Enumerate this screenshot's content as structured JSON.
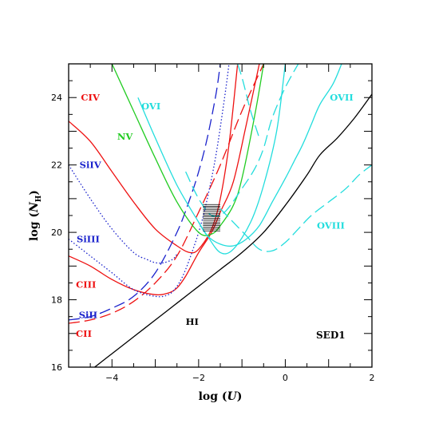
{
  "chart_data": {
    "type": "line",
    "title": "",
    "xlabel_prefix": "log (",
    "xlabel_var": "U",
    "xlabel_suffix": ")",
    "ylabel_prefix": "log (",
    "ylabel_var": "N",
    "ylabel_sub": "H",
    "ylabel_suffix": ")",
    "xlim": [
      -5,
      2
    ],
    "ylim": [
      16,
      25
    ],
    "grid": false,
    "x_ticks": [
      -4,
      -2,
      0,
      2
    ],
    "x_tick_labels": [
      "−4",
      "−2",
      "0",
      "2"
    ],
    "y_ticks": [
      16,
      18,
      20,
      22,
      24
    ],
    "y_tick_labels": [
      "16",
      "18",
      "20",
      "22",
      "24"
    ],
    "annotation": "SED1",
    "colors": {
      "carbon": "#ee1111",
      "silicon": "#1a22cc",
      "nitrogen": "#22cc22",
      "oxygen": "#22dddd",
      "hydrogen": "#000000"
    },
    "series": [
      {
        "name": "CIV",
        "color_key": "carbon",
        "dash": "solid",
        "x": [
          -5.0,
          -4.5,
          -4.0,
          -3.5,
          -3.0,
          -2.5,
          -2.2,
          -2.0,
          -1.7,
          -1.5,
          -1.3,
          -1.1
        ],
        "y": [
          23.3,
          22.7,
          21.8,
          20.9,
          20.1,
          19.6,
          19.4,
          19.5,
          20.1,
          21.0,
          22.6,
          25.0
        ]
      },
      {
        "name": "CIII",
        "color_key": "carbon",
        "dash": "solid",
        "x": [
          -5.0,
          -4.5,
          -4.0,
          -3.5,
          -3.0,
          -2.7,
          -2.5,
          -2.3,
          -2.0,
          -1.7,
          -1.5,
          -1.2,
          -0.9,
          -0.6
        ],
        "y": [
          19.3,
          19.0,
          18.6,
          18.3,
          18.15,
          18.2,
          18.35,
          18.7,
          19.4,
          20.0,
          20.6,
          21.5,
          23.2,
          25.0
        ]
      },
      {
        "name": "CII",
        "color_key": "carbon",
        "dash": "dashed",
        "x": [
          -5.0,
          -4.5,
          -4.0,
          -3.5,
          -3.0,
          -2.5,
          -2.0,
          -1.5,
          -1.0,
          -0.5
        ],
        "y": [
          17.3,
          17.4,
          17.6,
          17.95,
          18.5,
          19.3,
          20.6,
          22.0,
          23.6,
          25.0
        ]
      },
      {
        "name": "SiIV",
        "color_key": "silicon",
        "dash": "dotted",
        "x": [
          -5.0,
          -4.5,
          -4.0,
          -3.5,
          -3.2,
          -3.0,
          -2.8,
          -2.6,
          -2.5
        ],
        "y": [
          22.0,
          21.0,
          20.1,
          19.4,
          19.2,
          19.1,
          19.1,
          19.2,
          19.35
        ]
      },
      {
        "name": "SiIII",
        "color_key": "silicon",
        "dash": "dotted",
        "x": [
          -5.0,
          -4.5,
          -4.0,
          -3.5,
          -3.0,
          -2.7,
          -2.5,
          -2.3,
          -2.0,
          -1.8,
          -1.6,
          -1.4,
          -1.3
        ],
        "y": [
          19.8,
          19.3,
          18.8,
          18.3,
          18.1,
          18.15,
          18.4,
          18.9,
          20.0,
          21.0,
          22.3,
          24.0,
          25.0
        ]
      },
      {
        "name": "SiII",
        "color_key": "silicon",
        "dash": "dashed",
        "x": [
          -5.0,
          -4.5,
          -4.0,
          -3.5,
          -3.0,
          -2.5,
          -2.2,
          -2.0,
          -1.8,
          -1.6,
          -1.5
        ],
        "y": [
          17.4,
          17.5,
          17.75,
          18.1,
          18.8,
          20.0,
          21.0,
          21.8,
          22.8,
          24.1,
          25.0
        ]
      },
      {
        "name": "NV",
        "color_key": "nitrogen",
        "dash": "solid",
        "x": [
          -4.0,
          -3.5,
          -3.0,
          -2.5,
          -2.0,
          -1.7,
          -1.5,
          -1.2,
          -1.0,
          -0.7,
          -0.5
        ],
        "y": [
          25.0,
          23.6,
          22.2,
          20.9,
          20.0,
          19.95,
          20.2,
          20.8,
          21.6,
          23.5,
          25.0
        ]
      },
      {
        "name": "OVI",
        "color_key": "oxygen",
        "dash": "solid",
        "x": [
          -3.4,
          -3.0,
          -2.5,
          -2.0,
          -1.8,
          -1.5,
          -1.2,
          -0.8,
          -0.5,
          -0.2,
          0.0
        ],
        "y": [
          24.0,
          22.8,
          21.4,
          20.3,
          19.9,
          19.4,
          19.5,
          20.3,
          21.4,
          23.0,
          25.0
        ]
      },
      {
        "name": "",
        "color_key": "oxygen",
        "dash": "solid",
        "x": [
          -2.0,
          -1.8,
          -1.5,
          -1.2,
          -0.9,
          -0.6,
          -0.3,
          0.0,
          0.2,
          0.4,
          0.6,
          0.8,
          1.1,
          1.3
        ],
        "y": [
          20.3,
          19.9,
          19.65,
          19.6,
          19.8,
          20.2,
          20.9,
          21.6,
          22.1,
          22.6,
          23.2,
          23.8,
          24.4,
          25.0
        ]
      },
      {
        "name": "OVII",
        "color_key": "oxygen",
        "dash": "dashed",
        "x": [
          -2.3,
          -2.0,
          -1.7,
          -1.4,
          -1.0,
          -0.7,
          -0.5,
          -0.3,
          0.0,
          0.3
        ],
        "y": [
          21.8,
          21.0,
          20.5,
          20.6,
          21.3,
          21.9,
          22.5,
          23.4,
          24.3,
          25.0
        ]
      },
      {
        "name": "",
        "color_key": "oxygen",
        "dash": "dashed",
        "x": [
          -1.1,
          -1.0,
          -0.9,
          -0.8,
          -0.6
        ],
        "y": [
          25.0,
          24.6,
          24.1,
          23.6,
          22.8
        ]
      },
      {
        "name": "OVIII",
        "color_key": "oxygen",
        "dash": "dashed",
        "x": [
          -1.5,
          -1.2,
          -0.9,
          -0.6,
          -0.3,
          0.0,
          0.3,
          0.6,
          1.0,
          1.4,
          1.7,
          2.0
        ],
        "y": [
          20.7,
          20.3,
          19.9,
          19.5,
          19.45,
          19.7,
          20.1,
          20.5,
          20.9,
          21.3,
          21.7,
          22.0
        ]
      },
      {
        "name": "HI",
        "color_key": "hydrogen",
        "dash": "solid",
        "x": [
          -4.4,
          -4.0,
          -3.5,
          -3.0,
          -2.5,
          -2.0,
          -1.5,
          -1.0,
          -0.5,
          0.0,
          0.5,
          0.8,
          1.2,
          1.6,
          2.0
        ],
        "y": [
          16.0,
          16.4,
          16.9,
          17.4,
          17.9,
          18.4,
          18.9,
          19.4,
          20.0,
          20.8,
          21.7,
          22.3,
          22.8,
          23.4,
          24.1
        ]
      }
    ],
    "labels": [
      {
        "text": "CIV",
        "color_key": "carbon",
        "x": -4.5,
        "y": 24.0
      },
      {
        "text": "NV",
        "color_key": "nitrogen",
        "x": -3.7,
        "y": 22.85
      },
      {
        "text": "OVI",
        "color_key": "oxygen",
        "x": -3.1,
        "y": 23.75
      },
      {
        "text": "OVII",
        "color_key": "oxygen",
        "x": 1.3,
        "y": 24.0
      },
      {
        "text": "SiIV",
        "color_key": "silicon",
        "x": -4.5,
        "y": 22.0
      },
      {
        "text": "SiIII",
        "color_key": "silicon",
        "x": -4.55,
        "y": 19.8
      },
      {
        "text": "OVIII",
        "color_key": "oxygen",
        "x": 1.05,
        "y": 20.2
      },
      {
        "text": "CIII",
        "color_key": "carbon",
        "x": -4.6,
        "y": 18.45
      },
      {
        "text": "SiII",
        "color_key": "silicon",
        "x": -4.55,
        "y": 17.55
      },
      {
        "text": "CII",
        "color_key": "carbon",
        "x": -4.65,
        "y": 17.0
      },
      {
        "text": "HI",
        "color_key": "hydrogen",
        "x": -2.15,
        "y": 17.35
      }
    ],
    "shaded_region": {
      "x": [
        -1.9,
        -1.5
      ],
      "y": [
        20.0,
        20.85
      ]
    }
  }
}
